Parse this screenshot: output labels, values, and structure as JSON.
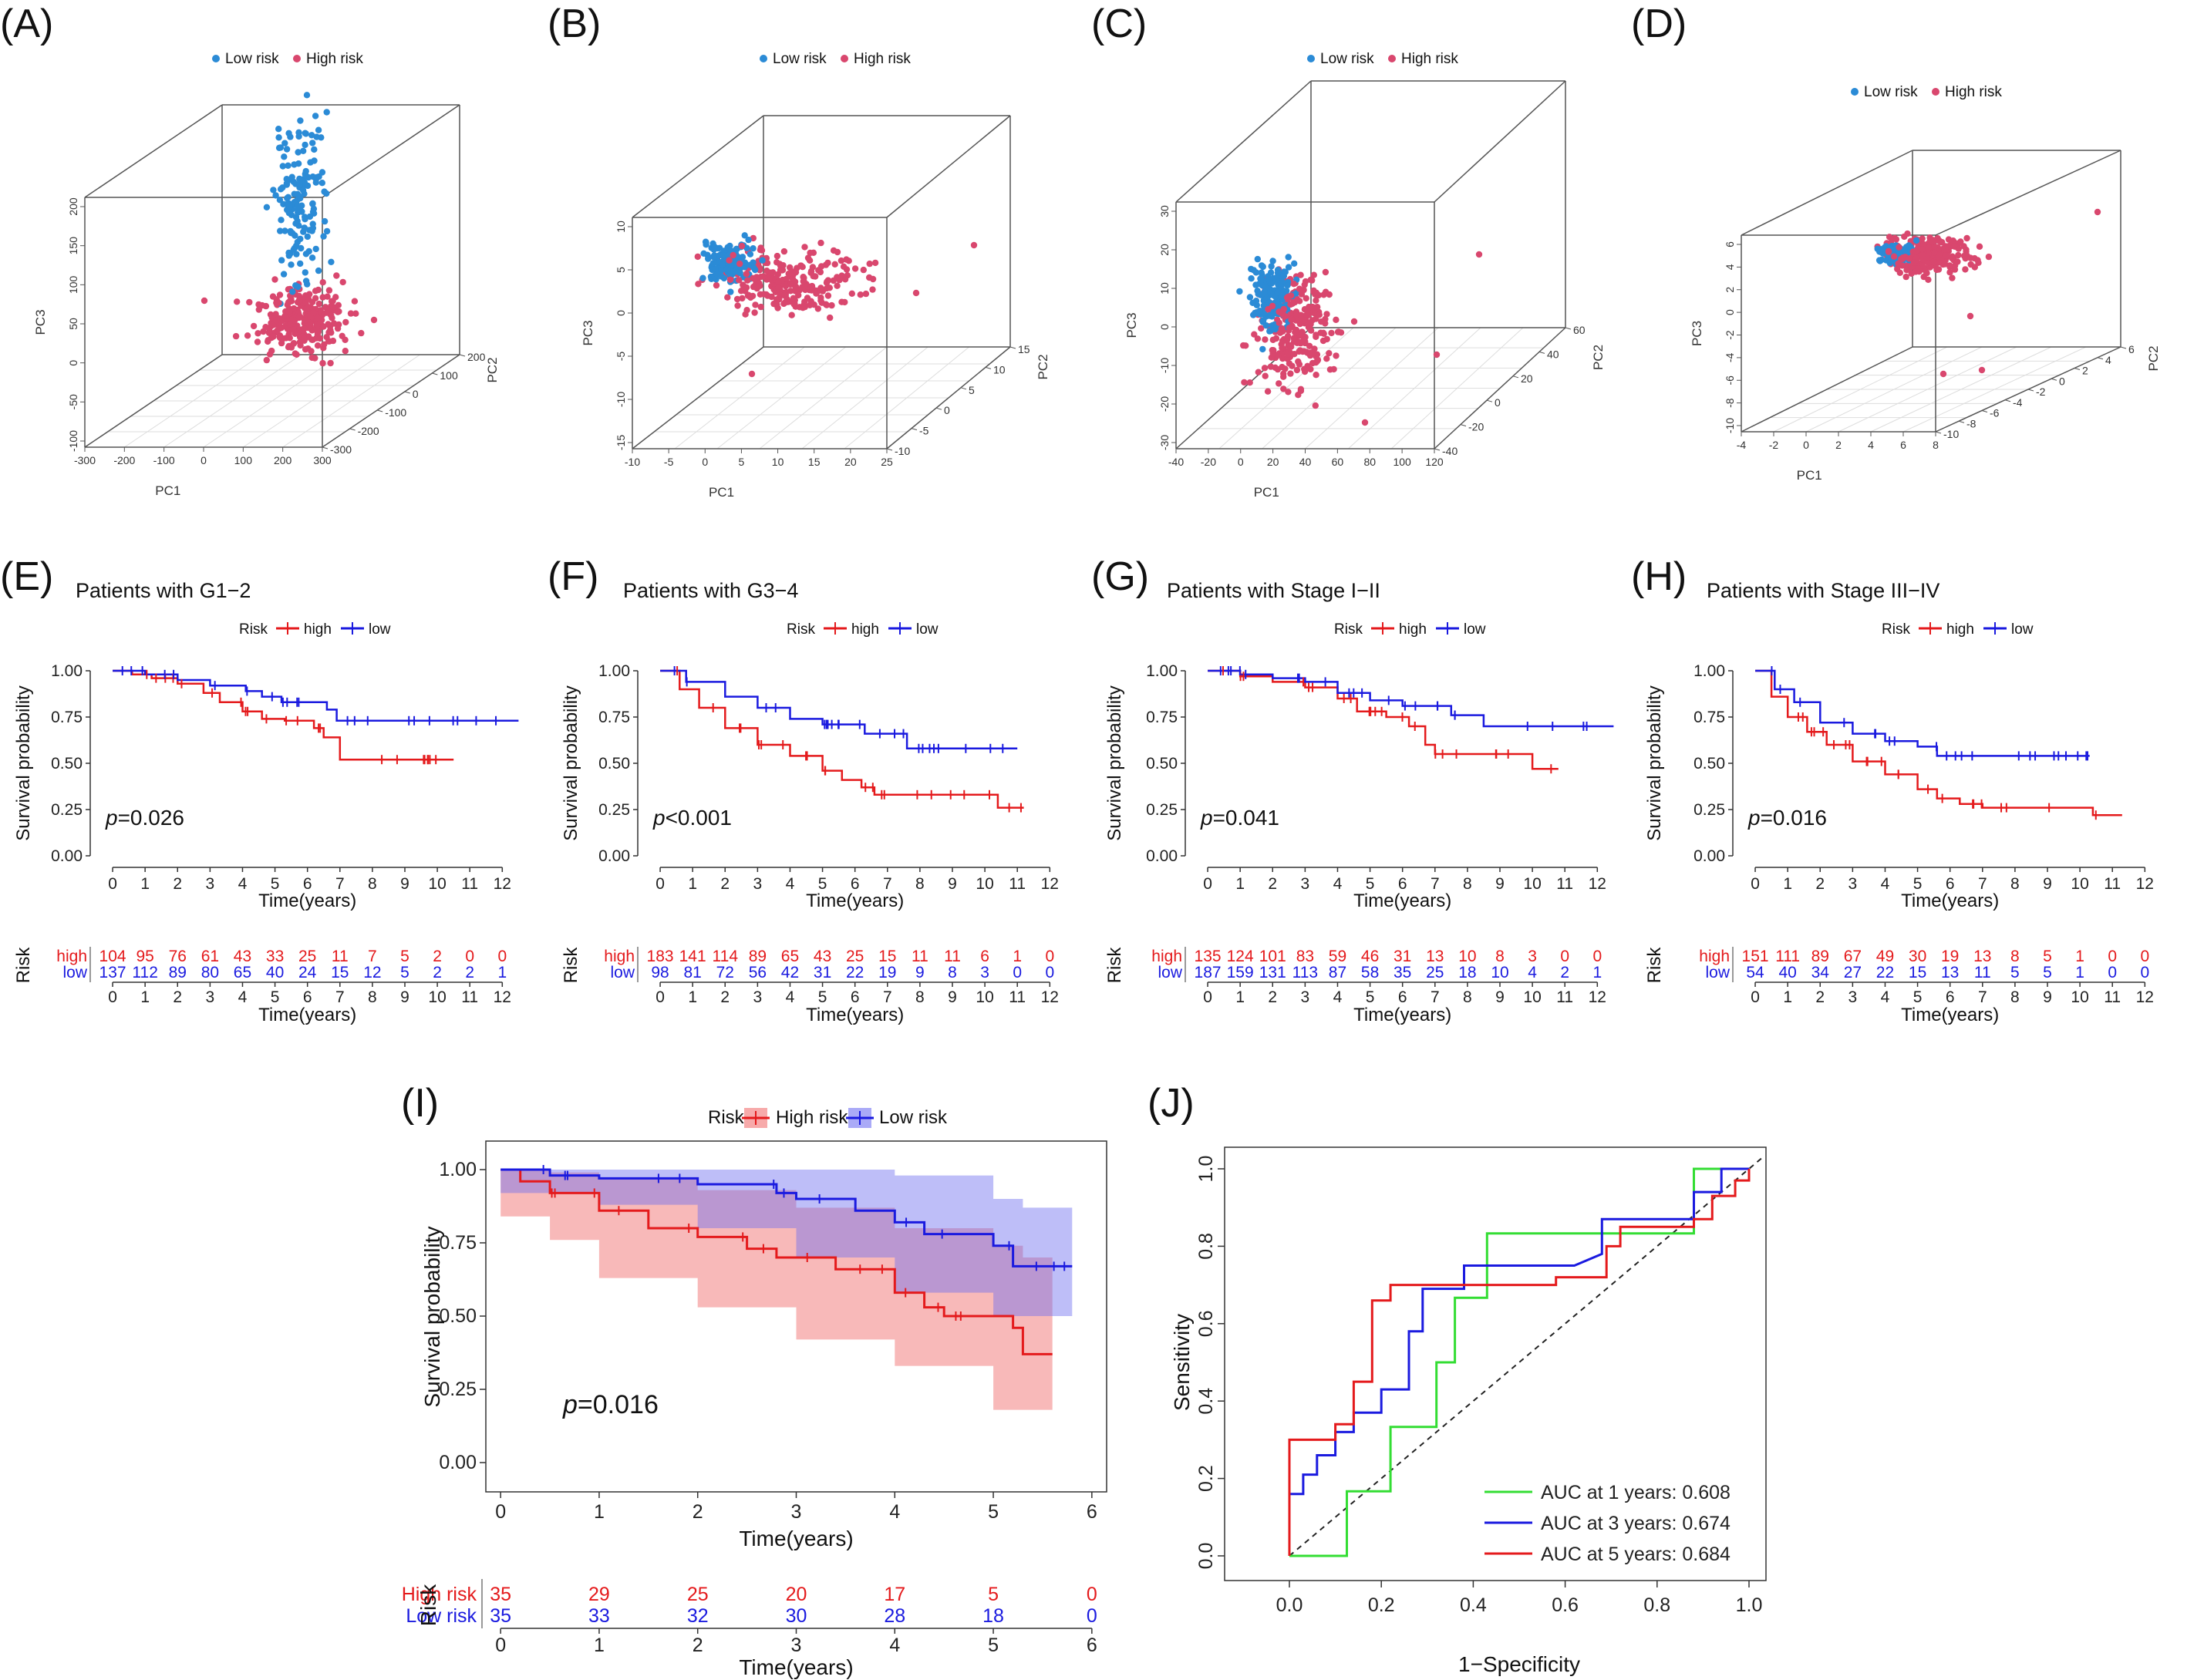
{
  "colors": {
    "low_risk_pca": "#2b8bd6",
    "high_risk_pca": "#d9476e",
    "high_km": "#e41a1c",
    "low_km": "#1a1adf",
    "auc1": "#33dd33",
    "auc3": "#1a1adf",
    "auc5": "#e41a1c"
  },
  "panel_labels": [
    "(A)",
    "(B)",
    "(C)",
    "(D)",
    "(E)",
    "(F)",
    "(G)",
    "(H)",
    "(I)",
    "(J)"
  ],
  "pca_panels": [
    {
      "label": "(A)",
      "legend": [
        "Low risk",
        "High risk"
      ],
      "xlabel": "PC1",
      "ylabel": "PC2",
      "zlabel": "PC3",
      "xticks": [
        "-300",
        "-200",
        "-100",
        "0",
        "100",
        "200",
        "300"
      ],
      "yticks": [
        "-300",
        "-200",
        "-100",
        "0",
        "100",
        "200"
      ],
      "zticks": [
        "-100",
        "-50",
        "0",
        "50",
        "100",
        "150",
        "200"
      ]
    },
    {
      "label": "(B)",
      "legend": [
        "Low risk",
        "High risk"
      ],
      "xlabel": "PC1",
      "ylabel": "PC2",
      "zlabel": "PC3",
      "xticks": [
        "-10",
        "-5",
        "0",
        "5",
        "10",
        "15",
        "20",
        "25"
      ],
      "yticks": [
        "-10",
        "-5",
        "0",
        "5",
        "10",
        "15"
      ],
      "zticks": [
        "-15",
        "-10",
        "-5",
        "0",
        "5",
        "10"
      ]
    },
    {
      "label": "(C)",
      "legend": [
        "Low risk",
        "High risk"
      ],
      "xlabel": "PC1",
      "ylabel": "PC2",
      "zlabel": "PC3",
      "xticks": [
        "-40",
        "-20",
        "0",
        "20",
        "40",
        "60",
        "80",
        "100",
        "120"
      ],
      "yticks": [
        "-40",
        "-20",
        "0",
        "20",
        "40",
        "60"
      ],
      "zticks": [
        "-30",
        "-20",
        "-10",
        "0",
        "10",
        "20",
        "30"
      ]
    },
    {
      "label": "(D)",
      "legend": [
        "Low risk",
        "High risk"
      ],
      "xlabel": "PC1",
      "ylabel": "PC2",
      "zlabel": "PC3",
      "xticks": [
        "-4",
        "-2",
        "0",
        "2",
        "4",
        "6",
        "8"
      ],
      "yticks": [
        "-10",
        "-8",
        "-6",
        "-4",
        "-2",
        "0",
        "2",
        "4",
        "6"
      ],
      "zticks": [
        "-10",
        "-8",
        "-6",
        "-4",
        "-2",
        "0",
        "2",
        "4",
        "6"
      ]
    }
  ],
  "km_small": [
    {
      "label": "(E)",
      "title": "Patients with G1−2",
      "p_prefix": "p",
      "p_rest": "=0.026",
      "legend_title": "Risk",
      "legend": [
        "high",
        "low"
      ],
      "high": [
        [
          0,
          1
        ],
        [
          0.6,
          0.98
        ],
        [
          1.2,
          0.96
        ],
        [
          2,
          0.93
        ],
        [
          2.8,
          0.88
        ],
        [
          3.3,
          0.83
        ],
        [
          4,
          0.78
        ],
        [
          4.6,
          0.74
        ],
        [
          5.3,
          0.73
        ],
        [
          6.2,
          0.69
        ],
        [
          6.5,
          0.64
        ],
        [
          7,
          0.52
        ],
        [
          10.5,
          0.52
        ]
      ],
      "low": [
        [
          0,
          1
        ],
        [
          1,
          0.98
        ],
        [
          2,
          0.95
        ],
        [
          3,
          0.92
        ],
        [
          4.1,
          0.89
        ],
        [
          4.6,
          0.86
        ],
        [
          5.2,
          0.83
        ],
        [
          6.6,
          0.79
        ],
        [
          6.9,
          0.73
        ],
        [
          12.5,
          0.73
        ]
      ],
      "risk_table": {
        "high": [
          "104",
          "95",
          "76",
          "61",
          "43",
          "33",
          "25",
          "11",
          "7",
          "5",
          "2",
          "0",
          "0"
        ],
        "low": [
          "137",
          "112",
          "89",
          "80",
          "65",
          "40",
          "24",
          "15",
          "12",
          "5",
          "2",
          "2",
          "1"
        ]
      }
    },
    {
      "label": "(F)",
      "title": "Patients with G3−4",
      "p_prefix": "p",
      "p_rest": "<0.001",
      "legend_title": "Risk",
      "legend": [
        "high",
        "low"
      ],
      "high": [
        [
          0,
          1
        ],
        [
          0.6,
          0.9
        ],
        [
          1.2,
          0.8
        ],
        [
          2,
          0.69
        ],
        [
          3,
          0.6
        ],
        [
          4,
          0.54
        ],
        [
          5,
          0.46
        ],
        [
          5.6,
          0.41
        ],
        [
          6.2,
          0.37
        ],
        [
          6.6,
          0.33
        ],
        [
          10,
          0.33
        ],
        [
          10.4,
          0.26
        ],
        [
          11.2,
          0.26
        ]
      ],
      "low": [
        [
          0,
          1
        ],
        [
          0.8,
          0.94
        ],
        [
          2,
          0.86
        ],
        [
          3,
          0.8
        ],
        [
          4,
          0.74
        ],
        [
          5,
          0.71
        ],
        [
          6.3,
          0.66
        ],
        [
          7.6,
          0.58
        ],
        [
          11,
          0.58
        ]
      ],
      "risk_table": {
        "high": [
          "183",
          "141",
          "114",
          "89",
          "65",
          "43",
          "25",
          "15",
          "11",
          "11",
          "6",
          "1",
          "0"
        ],
        "low": [
          "98",
          "81",
          "72",
          "56",
          "42",
          "31",
          "22",
          "19",
          "9",
          "8",
          "3",
          "0",
          "0"
        ]
      }
    },
    {
      "label": "(G)",
      "title": "Patients with Stage I−II",
      "p_prefix": "p",
      "p_rest": "=0.041",
      "legend_title": "Risk",
      "legend": [
        "high",
        "low"
      ],
      "high": [
        [
          0,
          1
        ],
        [
          1,
          0.97
        ],
        [
          2,
          0.94
        ],
        [
          3,
          0.91
        ],
        [
          4,
          0.85
        ],
        [
          4.6,
          0.78
        ],
        [
          5.5,
          0.75
        ],
        [
          6.2,
          0.7
        ],
        [
          6.7,
          0.6
        ],
        [
          7,
          0.55
        ],
        [
          9.8,
          0.55
        ],
        [
          10,
          0.47
        ],
        [
          10.8,
          0.47
        ]
      ],
      "low": [
        [
          0,
          1
        ],
        [
          1,
          0.98
        ],
        [
          2,
          0.96
        ],
        [
          3,
          0.94
        ],
        [
          4,
          0.88
        ],
        [
          5,
          0.84
        ],
        [
          6,
          0.81
        ],
        [
          7.5,
          0.76
        ],
        [
          8.5,
          0.7
        ],
        [
          12.5,
          0.7
        ]
      ],
      "risk_table": {
        "high": [
          "135",
          "124",
          "101",
          "83",
          "59",
          "46",
          "31",
          "13",
          "10",
          "8",
          "3",
          "0",
          "0"
        ],
        "low": [
          "187",
          "159",
          "131",
          "113",
          "87",
          "58",
          "35",
          "25",
          "18",
          "10",
          "4",
          "2",
          "1"
        ]
      }
    },
    {
      "label": "(H)",
      "title": "Patients with Stage III−IV",
      "p_prefix": "p",
      "p_rest": "=0.016",
      "legend_title": "Risk",
      "legend": [
        "high",
        "low"
      ],
      "high": [
        [
          0,
          1
        ],
        [
          0.5,
          0.86
        ],
        [
          1,
          0.75
        ],
        [
          1.6,
          0.67
        ],
        [
          2.2,
          0.6
        ],
        [
          3,
          0.51
        ],
        [
          4,
          0.44
        ],
        [
          5,
          0.36
        ],
        [
          5.6,
          0.31
        ],
        [
          6.3,
          0.28
        ],
        [
          7,
          0.26
        ],
        [
          10.2,
          0.26
        ],
        [
          10.4,
          0.22
        ],
        [
          11.3,
          0.22
        ]
      ],
      "low": [
        [
          0,
          1
        ],
        [
          0.6,
          0.9
        ],
        [
          1.2,
          0.83
        ],
        [
          2,
          0.72
        ],
        [
          3,
          0.66
        ],
        [
          4,
          0.62
        ],
        [
          5,
          0.59
        ],
        [
          5.6,
          0.54
        ],
        [
          10.3,
          0.54
        ]
      ],
      "risk_table": {
        "high": [
          "151",
          "111",
          "89",
          "67",
          "49",
          "30",
          "19",
          "13",
          "8",
          "5",
          "1",
          "0",
          "0"
        ],
        "low": [
          "54",
          "40",
          "34",
          "27",
          "22",
          "15",
          "13",
          "11",
          "5",
          "5",
          "1",
          "0",
          "0"
        ]
      }
    }
  ],
  "km_common": {
    "yticks": [
      "0.00",
      "0.25",
      "0.50",
      "0.75",
      "1.00"
    ],
    "xticks": [
      "0",
      "1",
      "2",
      "3",
      "4",
      "5",
      "6",
      "7",
      "8",
      "9",
      "10",
      "11",
      "12"
    ],
    "xlabel": "Time(years)",
    "ylabel": "Survival probability",
    "risk_axis_label": "Risk",
    "risk_rows": [
      "high",
      "low"
    ]
  },
  "km_large": {
    "label": "(I)",
    "p_prefix": "p",
    "p_rest": "=0.016",
    "legend_title": "Risk",
    "legend": [
      "High risk",
      "Low risk"
    ],
    "xlabel": "Time(years)",
    "ylabel": "Survival probability",
    "xticks": [
      "0",
      "1",
      "2",
      "3",
      "4",
      "5",
      "6"
    ],
    "yticks": [
      "0.00",
      "0.25",
      "0.50",
      "0.75",
      "1.00"
    ],
    "high": [
      [
        0,
        1
      ],
      [
        0.2,
        0.96
      ],
      [
        0.5,
        0.92
      ],
      [
        1,
        0.86
      ],
      [
        1.5,
        0.8
      ],
      [
        2,
        0.77
      ],
      [
        2.5,
        0.73
      ],
      [
        2.8,
        0.7
      ],
      [
        3.4,
        0.66
      ],
      [
        4,
        0.58
      ],
      [
        4.3,
        0.53
      ],
      [
        4.5,
        0.5
      ],
      [
        5.2,
        0.46
      ],
      [
        5.3,
        0.37
      ],
      [
        5.6,
        0.37
      ]
    ],
    "low": [
      [
        0,
        1
      ],
      [
        0.5,
        0.98
      ],
      [
        1,
        0.97
      ],
      [
        2,
        0.95
      ],
      [
        2.8,
        0.92
      ],
      [
        3,
        0.9
      ],
      [
        3.6,
        0.86
      ],
      [
        4,
        0.82
      ],
      [
        4.3,
        0.78
      ],
      [
        5,
        0.74
      ],
      [
        5.2,
        0.67
      ],
      [
        5.8,
        0.67
      ]
    ],
    "high_ci": {
      "upper": [
        [
          0,
          1
        ],
        [
          0.5,
          0.99
        ],
        [
          1,
          0.97
        ],
        [
          2,
          0.93
        ],
        [
          3,
          0.87
        ],
        [
          4,
          0.8
        ],
        [
          5,
          0.74
        ],
        [
          5.3,
          0.7
        ],
        [
          5.6,
          0.7
        ]
      ],
      "lower": [
        [
          0,
          0.96
        ],
        [
          0.5,
          0.84
        ],
        [
          1,
          0.76
        ],
        [
          2,
          0.63
        ],
        [
          3,
          0.53
        ],
        [
          4,
          0.42
        ],
        [
          5,
          0.33
        ],
        [
          5.3,
          0.18
        ],
        [
          5.6,
          0.18
        ]
      ]
    },
    "low_ci": {
      "upper": [
        [
          0,
          1
        ],
        [
          1,
          1
        ],
        [
          2,
          1
        ],
        [
          3,
          1
        ],
        [
          4,
          0.98
        ],
        [
          5,
          0.9
        ],
        [
          5.3,
          0.87
        ],
        [
          5.8,
          0.87
        ]
      ],
      "lower": [
        [
          0,
          0.96
        ],
        [
          1,
          0.92
        ],
        [
          2,
          0.88
        ],
        [
          3,
          0.8
        ],
        [
          4,
          0.7
        ],
        [
          5,
          0.58
        ],
        [
          5.3,
          0.5
        ],
        [
          5.8,
          0.5
        ]
      ]
    },
    "risk_axis_label": "Risk",
    "risk_table": {
      "rows": [
        "High risk",
        "Low risk"
      ],
      "high": [
        "35",
        "29",
        "25",
        "20",
        "17",
        "5",
        "0"
      ],
      "low": [
        "35",
        "33",
        "32",
        "30",
        "28",
        "18",
        "0"
      ]
    }
  },
  "roc": {
    "label": "(J)",
    "xlabel": "1−Specificity",
    "ylabel": "Sensitivity",
    "ticks": [
      "0.0",
      "0.2",
      "0.4",
      "0.6",
      "0.8",
      "1.0"
    ],
    "legend": [
      "AUC at 1 years: 0.608",
      "AUC at 3 years: 0.674",
      "AUC at 5 years: 0.684"
    ],
    "curve1": [
      [
        0,
        0
      ],
      [
        0.125,
        0
      ],
      [
        0.125,
        0.167
      ],
      [
        0.22,
        0.167
      ],
      [
        0.22,
        0.333
      ],
      [
        0.32,
        0.333
      ],
      [
        0.32,
        0.5
      ],
      [
        0.36,
        0.5
      ],
      [
        0.36,
        0.667
      ],
      [
        0.43,
        0.667
      ],
      [
        0.43,
        0.833
      ],
      [
        0.88,
        0.833
      ],
      [
        0.88,
        1
      ],
      [
        1,
        1
      ]
    ],
    "curve3": [
      [
        0,
        0
      ],
      [
        0,
        0.16
      ],
      [
        0.03,
        0.16
      ],
      [
        0.03,
        0.21
      ],
      [
        0.06,
        0.21
      ],
      [
        0.06,
        0.26
      ],
      [
        0.1,
        0.26
      ],
      [
        0.1,
        0.32
      ],
      [
        0.14,
        0.32
      ],
      [
        0.14,
        0.37
      ],
      [
        0.2,
        0.37
      ],
      [
        0.2,
        0.43
      ],
      [
        0.26,
        0.43
      ],
      [
        0.26,
        0.58
      ],
      [
        0.29,
        0.58
      ],
      [
        0.29,
        0.69
      ],
      [
        0.38,
        0.69
      ],
      [
        0.38,
        0.75
      ],
      [
        0.62,
        0.75
      ],
      [
        0.68,
        0.78
      ],
      [
        0.68,
        0.87
      ],
      [
        0.88,
        0.87
      ],
      [
        0.88,
        0.94
      ],
      [
        0.94,
        0.94
      ],
      [
        0.94,
        1
      ],
      [
        1,
        1
      ]
    ],
    "curve5": [
      [
        0,
        0
      ],
      [
        0,
        0.3
      ],
      [
        0.1,
        0.3
      ],
      [
        0.1,
        0.34
      ],
      [
        0.14,
        0.34
      ],
      [
        0.14,
        0.45
      ],
      [
        0.18,
        0.45
      ],
      [
        0.18,
        0.66
      ],
      [
        0.22,
        0.66
      ],
      [
        0.22,
        0.7
      ],
      [
        0.58,
        0.7
      ],
      [
        0.58,
        0.72
      ],
      [
        0.69,
        0.72
      ],
      [
        0.69,
        0.8
      ],
      [
        0.72,
        0.8
      ],
      [
        0.72,
        0.85
      ],
      [
        0.88,
        0.85
      ],
      [
        0.88,
        0.87
      ],
      [
        0.92,
        0.87
      ],
      [
        0.92,
        0.93
      ],
      [
        0.97,
        0.93
      ],
      [
        0.97,
        0.97
      ],
      [
        1,
        0.97
      ],
      [
        1,
        1
      ]
    ]
  }
}
